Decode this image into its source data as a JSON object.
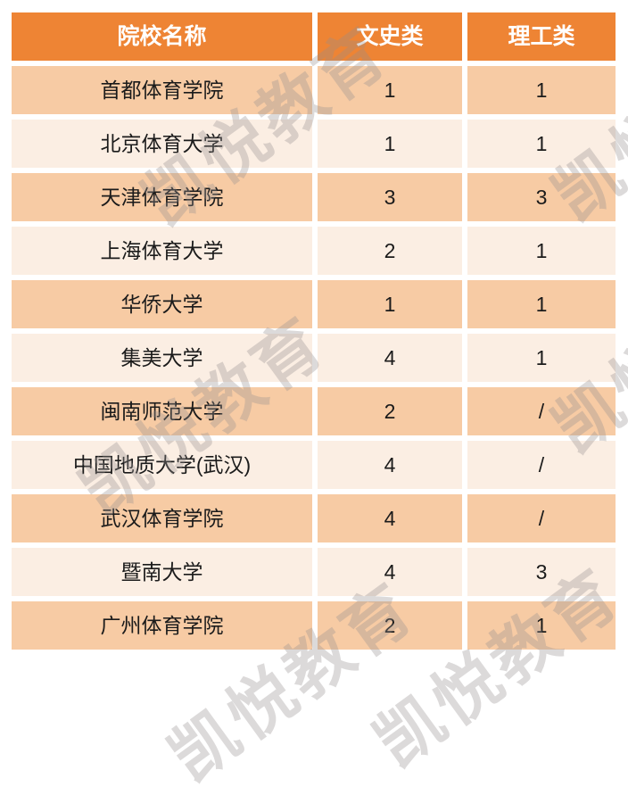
{
  "chart_data": {
    "type": "table",
    "title": "",
    "columns": [
      "院校名称",
      "文史类",
      "理工类"
    ],
    "rows": [
      [
        "首都体育学院",
        "1",
        "1"
      ],
      [
        "北京体育大学",
        "1",
        "1"
      ],
      [
        "天津体育学院",
        "3",
        "3"
      ],
      [
        "上海体育大学",
        "2",
        "1"
      ],
      [
        "华侨大学",
        "1",
        "1"
      ],
      [
        "集美大学",
        "4",
        "1"
      ],
      [
        "闽南师范大学",
        "2",
        "/"
      ],
      [
        "中国地质大学(武汉)",
        "4",
        "/"
      ],
      [
        "武汉体育学院",
        "4",
        "/"
      ],
      [
        "暨南大学",
        "4",
        "3"
      ],
      [
        "广州体育学院",
        "2",
        "1"
      ]
    ]
  },
  "watermark": {
    "text": "凯悦教育"
  },
  "colors": {
    "header_bg": "#ee8434",
    "header_text": "#ffffff",
    "row_dark_bg": "#f7cba4",
    "row_light_bg": "#fbeee3",
    "cell_text": "#1b1b1b",
    "gutter": "#ffffff"
  }
}
